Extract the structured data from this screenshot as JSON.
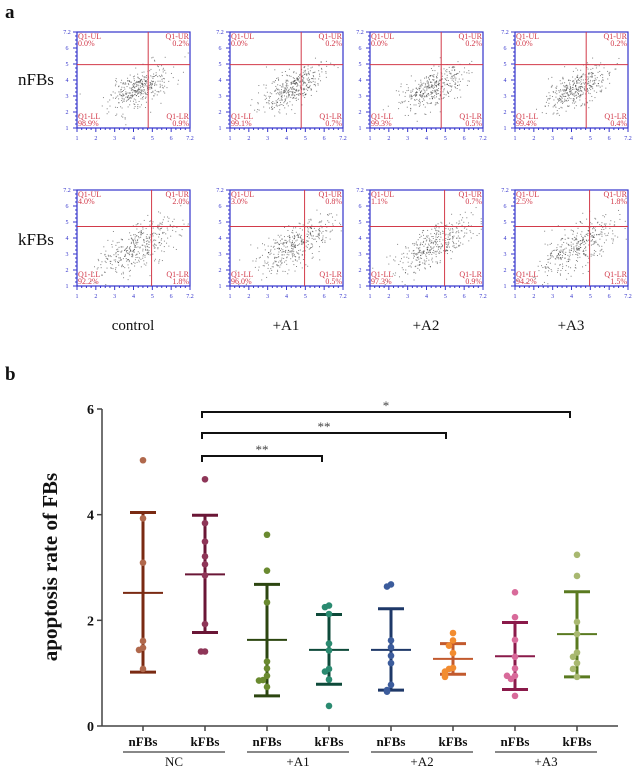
{
  "panel_a": {
    "letter": "a",
    "row_labels": [
      "nFBs",
      "kFBs"
    ],
    "column_labels": [
      "control",
      "+A1",
      "+A2",
      "+A3"
    ],
    "quadrant_names": {
      "UL": "Q1-UL",
      "UR": "Q1-UR",
      "LL": "Q1-LL",
      "LR": "Q1-LR"
    },
    "axis_tick_labels": [
      "1",
      "2",
      "3",
      "4",
      "5",
      "6",
      "7.2"
    ],
    "colors": {
      "frame": "#3333cc",
      "gate": "#d23a4a",
      "events": "#222222"
    }
  },
  "panel_b": {
    "letter": "b"
  },
  "chart_data": [
    {
      "type": "table",
      "description_rows": [
        "nFBs",
        "kFBs"
      ],
      "columns": [
        "control",
        "+A1",
        "+A2",
        "+A3"
      ],
      "quadrants": {
        "nFBs": [
          {
            "UL": "0.0%",
            "UR": "0.2%",
            "LL": "98.9%",
            "LR": "0.9%"
          },
          {
            "UL": "0.0%",
            "UR": "0.2%",
            "LL": "99.1%",
            "LR": "0.7%"
          },
          {
            "UL": "0.0%",
            "UR": "0.2%",
            "LL": "99.3%",
            "LR": "0.5%"
          },
          {
            "UL": "0.0%",
            "UR": "0.2%",
            "LL": "99.4%",
            "LR": "0.4%"
          }
        ],
        "kFBs": [
          {
            "UL": "4.0%",
            "UR": "2.0%",
            "LL": "92.2%",
            "LR": "1.8%"
          },
          {
            "UL": "3.0%",
            "UR": "0.8%",
            "LL": "96.0%",
            "LR": "0.5%"
          },
          {
            "UL": "1.1%",
            "UR": "0.7%",
            "LL": "97.3%",
            "LR": "0.9%"
          },
          {
            "UL": "2.5%",
            "UR": "1.8%",
            "LL": "94.2%",
            "LR": "1.5%"
          }
        ]
      }
    },
    {
      "type": "scatter",
      "ylabel": "apoptosis rate of FBs",
      "ylim": [
        0,
        6
      ],
      "yticks": [
        "0",
        "2",
        "4",
        "6"
      ],
      "categories": [
        "nFBs",
        "kFBs",
        "nFBs",
        "kFBs",
        "nFBs",
        "kFBs",
        "nFBs",
        "kFBs"
      ],
      "groups": [
        {
          "label": "NC",
          "members": [
            0,
            1
          ]
        },
        {
          "label": "+A1",
          "members": [
            2,
            3
          ]
        },
        {
          "label": "+A2",
          "members": [
            4,
            5
          ]
        },
        {
          "label": "+A3",
          "members": [
            6,
            7
          ]
        }
      ],
      "series": [
        {
          "points": [
            5.03,
            3.93,
            3.09,
            1.61,
            1.48,
            1.44,
            1.08
          ],
          "mean": 2.52,
          "sd_upper": 4.04,
          "sd_lower": 1.02,
          "line_color": "#7a2a12",
          "point_color": "#b0684c"
        },
        {
          "points": [
            4.67,
            3.84,
            3.49,
            3.21,
            3.06,
            2.85,
            1.93,
            1.41,
            1.41
          ],
          "mean": 2.87,
          "sd_upper": 3.99,
          "sd_lower": 1.77,
          "line_color": "#6a1636",
          "point_color": "#8e3658"
        },
        {
          "points": [
            3.62,
            2.94,
            2.34,
            1.22,
            1.09,
            0.95,
            0.87,
            0.86,
            0.74
          ],
          "mean": 1.63,
          "sd_upper": 2.68,
          "sd_lower": 0.57,
          "line_color": "#2c4610",
          "point_color": "#6a8a30"
        },
        {
          "points": [
            2.28,
            2.25,
            2.12,
            1.56,
            1.43,
            1.08,
            1.03,
            0.88,
            0.38
          ],
          "mean": 1.44,
          "sd_upper": 2.11,
          "sd_lower": 0.79,
          "line_color": "#0e4a3a",
          "point_color": "#2a8a70"
        },
        {
          "points": [
            2.68,
            2.64,
            1.62,
            1.49,
            1.33,
            1.19,
            0.78,
            0.68,
            0.65
          ],
          "mean": 1.44,
          "sd_upper": 2.22,
          "sd_lower": 0.68,
          "line_color": "#1e3868",
          "point_color": "#3c5c9c"
        },
        {
          "points": [
            1.76,
            1.62,
            1.52,
            1.38,
            1.1,
            1.08,
            1.03,
            0.98,
            0.93
          ],
          "mean": 1.27,
          "sd_upper": 1.56,
          "sd_lower": 0.98,
          "line_color": "#c25a2e",
          "point_color": "#f28c30"
        },
        {
          "points": [
            2.53,
            2.06,
            1.63,
            1.31,
            1.09,
            0.95,
            0.89,
            0.95,
            0.57
          ],
          "mean": 1.32,
          "sd_upper": 1.96,
          "sd_lower": 0.69,
          "line_color": "#8a1a4a",
          "point_color": "#d86a9a"
        },
        {
          "points": [
            3.24,
            2.84,
            1.97,
            1.74,
            1.39,
            1.31,
            1.19,
            1.08,
            0.93
          ],
          "mean": 1.74,
          "sd_upper": 2.54,
          "sd_lower": 0.93,
          "line_color": "#5a7a20",
          "point_color": "#a8b870"
        }
      ],
      "significance": [
        {
          "from": 1,
          "to": 7,
          "label": "*"
        },
        {
          "from": 1,
          "to": 5,
          "label": "**"
        },
        {
          "from": 1,
          "to": 3,
          "label": "**"
        }
      ]
    }
  ]
}
